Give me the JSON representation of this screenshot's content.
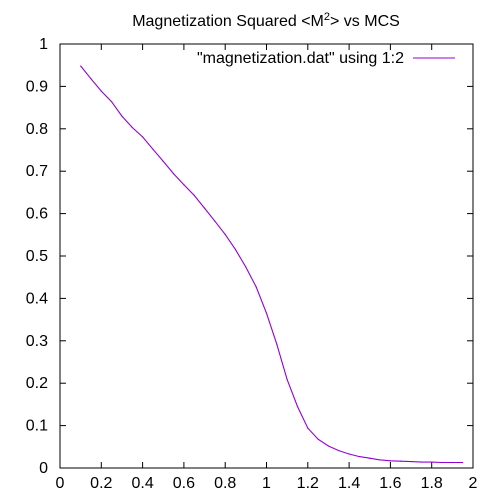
{
  "chart_data": {
    "type": "line",
    "title": "Magnetization Squared <M",
    "title_superscript": "2",
    "title_suffix": "> vs MCS",
    "xlabel": "",
    "ylabel": "",
    "xlim": [
      0,
      2
    ],
    "ylim": [
      0,
      1
    ],
    "xticks": [
      "0",
      "0.2",
      "0.4",
      "0.6",
      "0.8",
      "1",
      "1.2",
      "1.4",
      "1.6",
      "1.8",
      "2"
    ],
    "yticks": [
      "0",
      "0.1",
      "0.2",
      "0.3",
      "0.4",
      "0.5",
      "0.6",
      "0.7",
      "0.8",
      "0.9",
      "1"
    ],
    "grid": false,
    "legend_position": "top-right",
    "series": [
      {
        "name": "\"magnetization.dat\" using 1:2",
        "color": "#9400d3",
        "x": [
          0.1,
          0.15,
          0.2,
          0.25,
          0.3,
          0.35,
          0.4,
          0.45,
          0.5,
          0.55,
          0.6,
          0.65,
          0.7,
          0.75,
          0.8,
          0.85,
          0.9,
          0.95,
          1.0,
          1.05,
          1.1,
          1.15,
          1.2,
          1.25,
          1.3,
          1.35,
          1.4,
          1.45,
          1.5,
          1.55,
          1.6,
          1.65,
          1.7,
          1.75,
          1.8,
          1.85,
          1.9,
          1.95
        ],
        "y": [
          0.948,
          0.918,
          0.889,
          0.864,
          0.83,
          0.803,
          0.781,
          0.752,
          0.723,
          0.694,
          0.668,
          0.643,
          0.613,
          0.582,
          0.551,
          0.515,
          0.474,
          0.427,
          0.365,
          0.292,
          0.209,
          0.145,
          0.094,
          0.068,
          0.052,
          0.041,
          0.033,
          0.027,
          0.023,
          0.019,
          0.017,
          0.016,
          0.015,
          0.014,
          0.014,
          0.013,
          0.013,
          0.013
        ]
      }
    ]
  }
}
